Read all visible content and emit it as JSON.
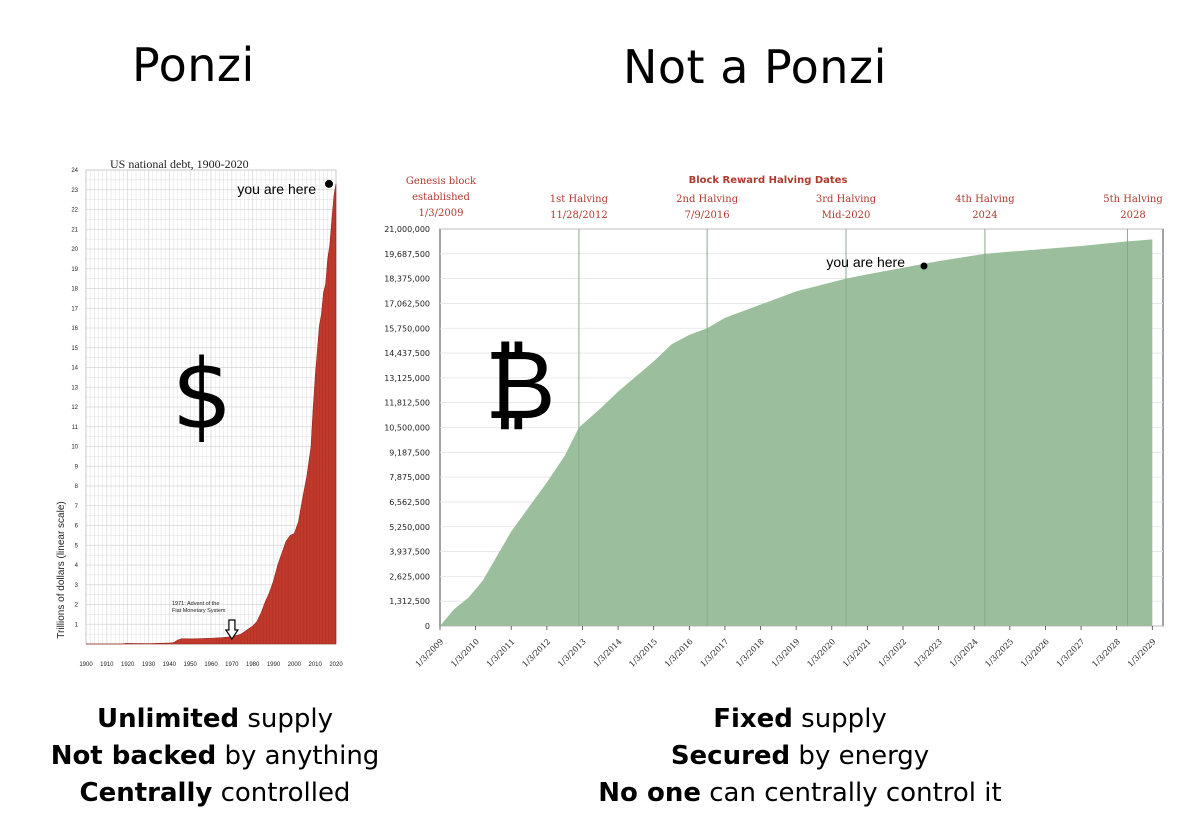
{
  "headings": {
    "left": "Ponzi",
    "right": "Not a Ponzi"
  },
  "captions": {
    "left": [
      {
        "bold": "Unlimited",
        "rest": " supply"
      },
      {
        "bold": "Not backed",
        "rest": " by anything"
      },
      {
        "bold": "Centrally",
        "rest": " controlled"
      }
    ],
    "right": [
      {
        "bold": "Fixed",
        "rest": " supply"
      },
      {
        "bold": "Secured",
        "rest": " by energy"
      },
      {
        "bold": "No one",
        "rest": " can centrally control it"
      }
    ]
  },
  "symbols": {
    "dollar": "$",
    "bitcoin": "₿"
  },
  "colors": {
    "debt_bar": "#c0392b",
    "btc_area": "#9bbf9c",
    "btc_text": "#b03a2e",
    "grid": "#d9d9d9"
  },
  "chart_data": [
    {
      "type": "bar",
      "title": "US national debt, 1900-2020",
      "ylabel": "Trillions of dollars (linear scale)",
      "xlabel": "",
      "xlim": [
        1900,
        2020
      ],
      "ylim": [
        0,
        24
      ],
      "xticks": [
        "1900",
        "1910",
        "1920",
        "1930",
        "1940",
        "1950",
        "1960",
        "1970",
        "1980",
        "1990",
        "2000",
        "2010",
        "2020"
      ],
      "yticks": [
        "1",
        "2",
        "3",
        "4",
        "5",
        "6",
        "7",
        "8",
        "9",
        "10",
        "11",
        "12",
        "13",
        "14",
        "15",
        "16",
        "17",
        "18",
        "19",
        "20",
        "21",
        "22",
        "23",
        "24"
      ],
      "grid": true,
      "annotations": [
        {
          "text": "you are here",
          "x": 2020,
          "y": 23.3
        },
        {
          "text": "1971: Advent of the Fiat Monetary System",
          "x": 1971,
          "y": 0.4
        }
      ],
      "x": [
        1900,
        1910,
        1917,
        1919,
        1920,
        1930,
        1940,
        1942,
        1944,
        1946,
        1950,
        1960,
        1965,
        1970,
        1972,
        1974,
        1976,
        1978,
        1980,
        1982,
        1984,
        1986,
        1988,
        1990,
        1992,
        1994,
        1996,
        1998,
        2000,
        2002,
        2004,
        2006,
        2008,
        2009,
        2010,
        2011,
        2012,
        2013,
        2014,
        2015,
        2016,
        2017,
        2018,
        2019,
        2020
      ],
      "values": [
        0.0,
        0.0,
        0.0,
        0.03,
        0.03,
        0.02,
        0.05,
        0.07,
        0.2,
        0.27,
        0.26,
        0.29,
        0.32,
        0.37,
        0.43,
        0.48,
        0.62,
        0.77,
        0.91,
        1.14,
        1.57,
        2.13,
        2.6,
        3.2,
        4.0,
        4.6,
        5.2,
        5.5,
        5.6,
        6.2,
        7.4,
        8.5,
        10.0,
        11.9,
        13.5,
        14.8,
        16.1,
        16.7,
        17.8,
        18.2,
        19.5,
        20.2,
        21.5,
        22.7,
        23.3
      ]
    },
    {
      "type": "area",
      "title": "Block Reward Halving Dates",
      "xlabel": "",
      "ylabel": "",
      "ylim": [
        0,
        21000000
      ],
      "yticks": [
        "0",
        "1,312,500",
        "2,625,000",
        "3,937,500",
        "5,250,000",
        "6,562,500",
        "7,875,000",
        "9,187,500",
        "10,500,000",
        "11,812,500",
        "13,125,000",
        "14,437,500",
        "15,750,000",
        "17,062,500",
        "18,375,000",
        "19,687,500",
        "21,000,000"
      ],
      "xticks": [
        "1/3/2009",
        "1/3/2010",
        "1/3/2011",
        "1/3/2012",
        "1/3/2013",
        "1/3/2014",
        "1/3/2015",
        "1/3/2016",
        "1/3/2017",
        "1/3/2018",
        "1/3/2019",
        "1/3/2020",
        "1/3/2021",
        "1/3/2022",
        "1/3/2023",
        "1/3/2024",
        "1/3/2025",
        "1/3/2026",
        "1/3/2027",
        "1/3/2028",
        "1/3/2029"
      ],
      "events": [
        {
          "line1": "Genesis block",
          "line2": "established",
          "line3": "1/3/2009",
          "x": 2009.0
        },
        {
          "line1": "1st Halving",
          "line2": "11/28/2012",
          "x": 2012.9
        },
        {
          "line1": "2nd Halving",
          "line2": "7/9/2016",
          "x": 2016.5
        },
        {
          "line1": "3rd Halving",
          "line2": "Mid-2020",
          "x": 2020.4
        },
        {
          "line1": "4th Halving",
          "line2": "2024",
          "x": 2024.3
        },
        {
          "line1": "5th Halving",
          "line2": "2028",
          "x": 2028.3
        }
      ],
      "grid": true,
      "annotations": [
        {
          "text": "you are here",
          "x": 2022.2,
          "y": 19000000
        }
      ],
      "x": [
        2009.0,
        2009.4,
        2009.8,
        2010.2,
        2010.6,
        2011.0,
        2011.5,
        2012.0,
        2012.5,
        2012.9,
        2013.5,
        2014.0,
        2014.5,
        2015.0,
        2015.5,
        2016.0,
        2016.5,
        2017.0,
        2018.0,
        2019.0,
        2020.4,
        2021.0,
        2022.0,
        2023.0,
        2024.3,
        2025.0,
        2026.0,
        2027.0,
        2028.3,
        2029.0
      ],
      "values": [
        0,
        900000,
        1500000,
        2400000,
        3700000,
        5000000,
        6300000,
        7600000,
        9000000,
        10500000,
        11500000,
        12400000,
        13200000,
        14000000,
        14900000,
        15400000,
        15750000,
        16300000,
        17000000,
        17700000,
        18375000,
        18600000,
        18950000,
        19300000,
        19687500,
        19800000,
        19950000,
        20100000,
        20343750,
        20450000
      ]
    }
  ]
}
